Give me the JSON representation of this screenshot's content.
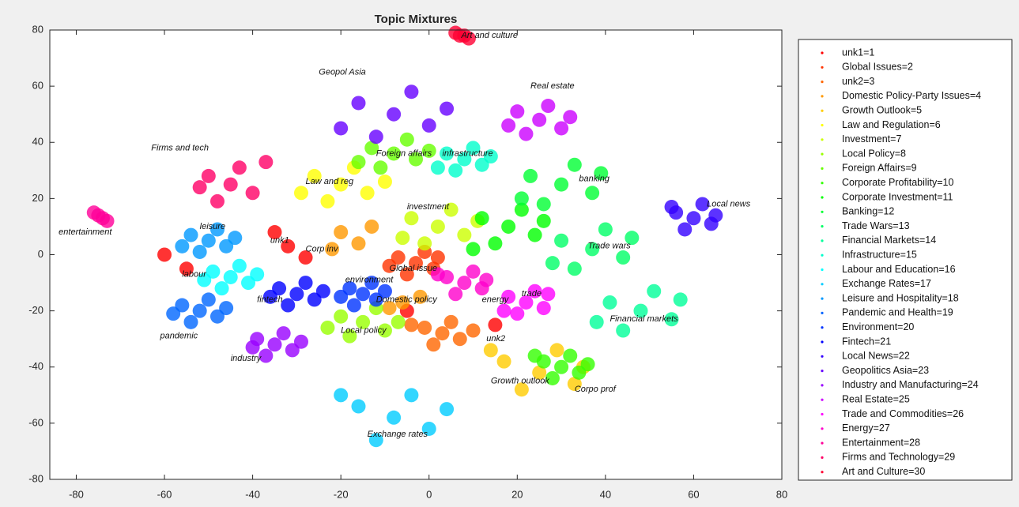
{
  "chart_data": {
    "type": "scatter",
    "title": "Topic Mixtures",
    "xlim": [
      -86,
      80
    ],
    "ylim": [
      -80,
      80
    ],
    "xticks": [
      -80,
      -60,
      -40,
      -20,
      0,
      20,
      40,
      60,
      80
    ],
    "yticks": [
      -80,
      -60,
      -40,
      -20,
      0,
      20,
      40,
      60,
      80
    ],
    "series": [
      {
        "name": "unk1=1",
        "color": "#ff0000",
        "x": [
          -60,
          -32,
          -28,
          -55,
          -35,
          -5,
          15
        ],
        "y": [
          0,
          3,
          -1,
          -5,
          8,
          -20,
          -25
        ]
      },
      {
        "name": "Global Issues=2",
        "color": "#ff3300",
        "x": [
          -3,
          -7,
          1,
          -1,
          -5,
          2,
          -9
        ],
        "y": [
          -3,
          -1,
          -5,
          1,
          -7,
          -1,
          -4
        ]
      },
      {
        "name": "unk2=3",
        "color": "#ff6600",
        "x": [
          3,
          -1,
          7,
          5,
          1,
          -4,
          10
        ],
        "y": [
          -28,
          -26,
          -30,
          -24,
          -32,
          -25,
          -27
        ]
      },
      {
        "name": "Domestic Policy-Party Issues=4",
        "color": "#ff9900",
        "x": [
          -20,
          -16,
          -22,
          -6,
          -2,
          -9,
          -13
        ],
        "y": [
          8,
          4,
          2,
          -17,
          -15,
          -19,
          10
        ]
      },
      {
        "name": "Growth Outlook=5",
        "color": "#ffcc00",
        "x": [
          25,
          17,
          33,
          29,
          21,
          35,
          14
        ],
        "y": [
          -42,
          -38,
          -46,
          -34,
          -48,
          -40,
          -34
        ]
      },
      {
        "name": "Law and Regulation=6",
        "color": "#ffff00",
        "x": [
          -20,
          -26,
          -14,
          -17,
          -23,
          -10,
          -29
        ],
        "y": [
          25,
          28,
          22,
          31,
          19,
          26,
          22
        ]
      },
      {
        "name": "Investment=7",
        "color": "#ccff00",
        "x": [
          2,
          -4,
          8,
          5,
          -1,
          11,
          -6
        ],
        "y": [
          10,
          13,
          7,
          16,
          4,
          12,
          6
        ]
      },
      {
        "name": "Local Policy=8",
        "color": "#99ff00",
        "x": [
          -15,
          -20,
          -10,
          -12,
          -18,
          -7,
          -23
        ],
        "y": [
          -24,
          -22,
          -27,
          -19,
          -29,
          -24,
          -26
        ]
      },
      {
        "name": "Foreign Affairs=9",
        "color": "#66ff00",
        "x": [
          -8,
          -13,
          -3,
          -5,
          -11,
          0,
          -16
        ],
        "y": [
          36,
          38,
          34,
          41,
          31,
          37,
          33
        ]
      },
      {
        "name": "Corporate Profitability=10",
        "color": "#33ff00",
        "x": [
          30,
          26,
          34,
          32,
          28,
          36,
          24
        ],
        "y": [
          -40,
          -38,
          -42,
          -36,
          -44,
          -39,
          -36
        ]
      },
      {
        "name": "Corporate Investment=11",
        "color": "#00ff00",
        "x": [
          18,
          12,
          24,
          21,
          15,
          26,
          10
        ],
        "y": [
          10,
          13,
          7,
          16,
          4,
          12,
          2
        ]
      },
      {
        "name": "Banking=12",
        "color": "#00ff33",
        "x": [
          30,
          23,
          37,
          33,
          26,
          39,
          21
        ],
        "y": [
          25,
          28,
          22,
          32,
          18,
          29,
          20
        ]
      },
      {
        "name": "Trade Wars=13",
        "color": "#00ff66",
        "x": [
          37,
          30,
          44,
          40,
          33,
          46,
          28
        ],
        "y": [
          2,
          5,
          -1,
          9,
          -5,
          6,
          -3
        ]
      },
      {
        "name": "Financial Markets=14",
        "color": "#00ff99",
        "x": [
          48,
          41,
          55,
          51,
          44,
          57,
          38
        ],
        "y": [
          -20,
          -17,
          -23,
          -13,
          -27,
          -16,
          -24
        ]
      },
      {
        "name": "Infrastructure=15",
        "color": "#00ffcc",
        "x": [
          8,
          4,
          12,
          10,
          6,
          14,
          2
        ],
        "y": [
          34,
          36,
          32,
          38,
          30,
          35,
          31
        ]
      },
      {
        "name": "Labour and Education=16",
        "color": "#00ffff",
        "x": [
          -45,
          -49,
          -41,
          -43,
          -47,
          -39,
          -51
        ],
        "y": [
          -8,
          -6,
          -10,
          -4,
          -12,
          -7,
          -9
        ]
      },
      {
        "name": "Exchange Rates=17",
        "color": "#00ccff",
        "x": [
          -8,
          -16,
          0,
          -4,
          -12,
          4,
          -20
        ],
        "y": [
          -58,
          -54,
          -62,
          -50,
          -66,
          -55,
          -50
        ]
      },
      {
        "name": "Leisure and Hospitality=18",
        "color": "#0099ff",
        "x": [
          -50,
          -54,
          -46,
          -48,
          -52,
          -44,
          -56
        ],
        "y": [
          5,
          7,
          3,
          9,
          1,
          6,
          3
        ]
      },
      {
        "name": "Pandemic and Health=19",
        "color": "#0066ff",
        "x": [
          -52,
          -56,
          -48,
          -50,
          -54,
          -46,
          -58
        ],
        "y": [
          -20,
          -18,
          -22,
          -16,
          -24,
          -19,
          -21
        ]
      },
      {
        "name": "Environment=20",
        "color": "#0033ff",
        "x": [
          -15,
          -18,
          -12,
          -13,
          -17,
          -10,
          -20
        ],
        "y": [
          -14,
          -12,
          -16,
          -10,
          -18,
          -13,
          -15
        ]
      },
      {
        "name": "Fintech=21",
        "color": "#0000ff",
        "x": [
          -30,
          -34,
          -26,
          -28,
          -32,
          -24,
          -36
        ],
        "y": [
          -14,
          -12,
          -16,
          -10,
          -18,
          -13,
          -15
        ]
      },
      {
        "name": "Local News=22",
        "color": "#3300ff",
        "x": [
          60,
          56,
          64,
          62,
          58,
          65,
          55
        ],
        "y": [
          13,
          15,
          11,
          18,
          9,
          14,
          17
        ]
      },
      {
        "name": "Geopolitics Asia=23",
        "color": "#6600ff",
        "x": [
          -8,
          -16,
          0,
          -4,
          -12,
          4,
          -20
        ],
        "y": [
          50,
          54,
          46,
          58,
          42,
          52,
          45
        ]
      },
      {
        "name": "Industry and Manufacturing=24",
        "color": "#9900ff",
        "x": [
          -35,
          -39,
          -31,
          -33,
          -37,
          -29,
          -40
        ],
        "y": [
          -32,
          -30,
          -34,
          -28,
          -36,
          -31,
          -33
        ]
      },
      {
        "name": "Real Estate=25",
        "color": "#cc00ff",
        "x": [
          25,
          20,
          30,
          27,
          22,
          32,
          18
        ],
        "y": [
          48,
          51,
          45,
          53,
          43,
          49,
          46
        ]
      },
      {
        "name": "Trade and Commodities=26",
        "color": "#ff00ff",
        "x": [
          22,
          18,
          26,
          24,
          20,
          17,
          27
        ],
        "y": [
          -17,
          -15,
          -19,
          -13,
          -21,
          -20,
          -14
        ]
      },
      {
        "name": "Energy=27",
        "color": "#ff00cc",
        "x": [
          8,
          4,
          12,
          10,
          6,
          13,
          2
        ],
        "y": [
          -10,
          -8,
          -12,
          -6,
          -14,
          -9,
          -7
        ]
      },
      {
        "name": "Entertainment=28",
        "color": "#ff0099",
        "x": [
          -76,
          -75,
          -74,
          -73
        ],
        "y": [
          15,
          14,
          13,
          12
        ]
      },
      {
        "name": "Firms and Technology=29",
        "color": "#ff0066",
        "x": [
          -45,
          -50,
          -40,
          -43,
          -48,
          -37,
          -52
        ],
        "y": [
          25,
          28,
          22,
          31,
          19,
          33,
          24
        ]
      },
      {
        "name": "Art and Culture=30",
        "color": "#ff0033",
        "x": [
          6,
          7,
          8,
          9
        ],
        "y": [
          79,
          78,
          78,
          77
        ]
      }
    ],
    "annotations": [
      {
        "text": "Art and culture",
        "x": 7.3,
        "y": 78
      },
      {
        "text": "Geopol Asia",
        "x": -25,
        "y": 65
      },
      {
        "text": "Real estate",
        "x": 23,
        "y": 60
      },
      {
        "text": "Firms and tech",
        "x": -63,
        "y": 38
      },
      {
        "text": "Foreign affairs",
        "x": -12,
        "y": 36
      },
      {
        "text": "infrastructure",
        "x": 3,
        "y": 36
      },
      {
        "text": "banking",
        "x": 34,
        "y": 27
      },
      {
        "text": "Law and reg",
        "x": -28,
        "y": 26
      },
      {
        "text": "Local news",
        "x": 63,
        "y": 18
      },
      {
        "text": "investment",
        "x": -5,
        "y": 17
      },
      {
        "text": "entertainment",
        "x": -84,
        "y": 8
      },
      {
        "text": "leisure",
        "x": -52,
        "y": 10
      },
      {
        "text": "unk1",
        "x": -36,
        "y": 5
      },
      {
        "text": "Corp inv",
        "x": -28,
        "y": 2
      },
      {
        "text": "Trade wars",
        "x": 36,
        "y": 3
      },
      {
        "text": "Global issue",
        "x": -9,
        "y": -5
      },
      {
        "text": "labour",
        "x": -56,
        "y": -7
      },
      {
        "text": "environment",
        "x": -19,
        "y": -9
      },
      {
        "text": "Domestic policy",
        "x": -12,
        "y": -16
      },
      {
        "text": "energy",
        "x": 12,
        "y": -16
      },
      {
        "text": "trade",
        "x": 21,
        "y": -14
      },
      {
        "text": "fintech",
        "x": -39,
        "y": -16
      },
      {
        "text": "Financial markets",
        "x": 41,
        "y": -23
      },
      {
        "text": "Local policy",
        "x": -20,
        "y": -27
      },
      {
        "text": "pandemic",
        "x": -61,
        "y": -29
      },
      {
        "text": "unk2",
        "x": 13,
        "y": -30
      },
      {
        "text": "industry",
        "x": -45,
        "y": -37
      },
      {
        "text": "Growth outlook",
        "x": 14,
        "y": -45
      },
      {
        "text": "Corpo prof",
        "x": 33,
        "y": -48
      },
      {
        "text": "Exchange rates",
        "x": -14,
        "y": -64
      }
    ]
  }
}
